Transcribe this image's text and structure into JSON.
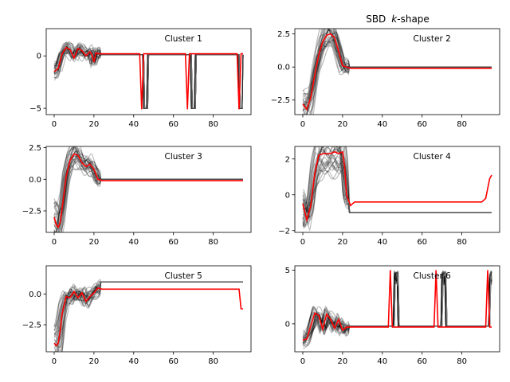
{
  "figure": {
    "title_prefix": "SBD",
    "title_italic": "k",
    "title_suffix": "-shape"
  },
  "chart_data": [
    {
      "type": "line",
      "label": "Cluster 1",
      "xlim": [
        -4,
        99
      ],
      "ylim": [
        -5.6,
        2.6
      ],
      "xticks": [
        0,
        20,
        40,
        60,
        80
      ],
      "yticks": [
        0,
        -5
      ],
      "series_colors": {
        "members": "#000000",
        "centroid": "#ff0000"
      },
      "centroid": {
        "x": [
          0,
          2,
          4,
          6,
          8,
          10,
          12,
          14,
          16,
          18,
          19,
          20,
          21,
          22,
          24,
          30,
          40,
          43,
          44,
          45,
          46,
          50,
          60,
          66,
          67,
          68,
          69,
          70,
          80,
          90,
          92,
          93,
          94,
          95
        ],
        "y": [
          -1.5,
          -1.2,
          0.2,
          0.8,
          0.6,
          -0.2,
          0.7,
          0.5,
          0.0,
          0.4,
          0.1,
          -0.6,
          0.3,
          0.2,
          0.2,
          0.2,
          0.2,
          0.2,
          -5.1,
          0.2,
          0.2,
          0.2,
          0.2,
          0.2,
          -5.1,
          0.2,
          0.2,
          0.2,
          0.2,
          0.2,
          0.2,
          -5.1,
          0.2,
          0.2
        ]
      },
      "members": {
        "count": 30,
        "pattern": "wave_then_flat",
        "flat_level": 0.1,
        "drops": [
          [
            45,
            47,
            -5.0
          ],
          [
            69,
            71,
            -5.0
          ],
          [
            93,
            95,
            -5.0
          ]
        ]
      }
    },
    {
      "type": "line",
      "label": "Cluster 2",
      "xlim": [
        -4,
        99
      ],
      "ylim": [
        -3.6,
        2.9
      ],
      "xticks": [
        0,
        20,
        40,
        60,
        80
      ],
      "yticks": [
        2.5,
        0.0,
        -2.5
      ],
      "series_colors": {
        "members": "#000000",
        "centroid": "#ff0000"
      },
      "centroid": {
        "x": [
          0,
          2,
          4,
          6,
          8,
          10,
          12,
          14,
          16,
          18,
          20,
          22,
          24,
          26,
          30,
          40,
          50,
          60,
          70,
          80,
          90,
          95
        ],
        "y": [
          -2.8,
          -3.2,
          -2.3,
          -0.6,
          0.9,
          1.9,
          2.4,
          2.5,
          2.2,
          1.2,
          0.1,
          0.0,
          -0.1,
          -0.1,
          -0.1,
          -0.1,
          -0.1,
          -0.1,
          -0.1,
          -0.1,
          -0.1,
          -0.1
        ]
      },
      "members": {
        "count": 30,
        "pattern": "wave_then_flat",
        "flat_level": 0.0
      }
    },
    {
      "type": "line",
      "label": "Cluster 3",
      "xlim": [
        -4,
        99
      ],
      "ylim": [
        -4.2,
        2.6
      ],
      "xticks": [
        0,
        20,
        40,
        60,
        80
      ],
      "yticks": [
        2.5,
        0.0,
        -2.5
      ],
      "series_colors": {
        "members": "#000000",
        "centroid": "#ff0000"
      },
      "centroid": {
        "x": [
          0,
          1,
          2,
          3,
          4,
          6,
          8,
          10,
          12,
          14,
          16,
          18,
          20,
          22,
          24,
          30,
          40,
          50,
          60,
          70,
          80,
          90,
          95
        ],
        "y": [
          -3.0,
          -3.6,
          -3.8,
          -3.4,
          -2.3,
          0.2,
          1.5,
          2.0,
          1.9,
          1.3,
          1.0,
          1.2,
          0.8,
          0.0,
          -0.1,
          -0.1,
          -0.1,
          -0.1,
          -0.1,
          -0.1,
          -0.1,
          -0.1,
          -0.1
        ]
      },
      "members": {
        "count": 30,
        "pattern": "wave_then_flat",
        "flat_level": 0.0
      }
    },
    {
      "type": "line",
      "label": "Cluster 4",
      "xlim": [
        -4,
        99
      ],
      "ylim": [
        -2.1,
        2.7
      ],
      "xticks": [
        0,
        20,
        40,
        60,
        80
      ],
      "yticks": [
        2,
        0,
        -2
      ],
      "series_colors": {
        "members": "#000000",
        "centroid": "#ff0000"
      },
      "centroid": {
        "x": [
          0,
          2,
          4,
          6,
          8,
          10,
          12,
          14,
          16,
          18,
          20,
          21,
          22,
          24,
          26,
          30,
          40,
          50,
          60,
          70,
          80,
          90,
          92,
          94,
          95
        ],
        "y": [
          -0.5,
          -1.4,
          -0.6,
          1.2,
          2.2,
          2.3,
          2.3,
          2.3,
          2.4,
          2.3,
          2.4,
          1.6,
          0.0,
          -0.6,
          -0.4,
          -0.4,
          -0.4,
          -0.4,
          -0.4,
          -0.4,
          -0.4,
          -0.4,
          -0.2,
          0.9,
          1.1
        ]
      },
      "members": {
        "count": 30,
        "pattern": "wave_then_flat",
        "flat_level": -1.0
      }
    },
    {
      "type": "line",
      "label": "Cluster 5",
      "xlim": [
        -4,
        99
      ],
      "ylim": [
        -4.7,
        2.3
      ],
      "xticks": [
        0,
        20,
        40,
        60,
        80
      ],
      "yticks": [
        0.0,
        -2.5
      ],
      "series_colors": {
        "members": "#000000",
        "centroid": "#ff0000"
      },
      "centroid": {
        "x": [
          0,
          1,
          2,
          3,
          4,
          6,
          8,
          10,
          12,
          14,
          16,
          18,
          20,
          22,
          24,
          30,
          40,
          50,
          60,
          70,
          80,
          90,
          93,
          94,
          95
        ],
        "y": [
          -4.0,
          -4.2,
          -4.0,
          -3.0,
          -1.6,
          -0.2,
          -0.3,
          0.2,
          -0.3,
          0.1,
          -0.6,
          -0.2,
          0.1,
          0.5,
          0.4,
          0.4,
          0.4,
          0.4,
          0.4,
          0.4,
          0.4,
          0.4,
          0.4,
          -1.2,
          -1.2
        ]
      },
      "members": {
        "count": 30,
        "pattern": "wave_then_flat",
        "flat_level": 1.0
      }
    },
    {
      "type": "line",
      "label": "Cluster 6",
      "xlim": [
        -4,
        99
      ],
      "ylim": [
        -2.6,
        5.4
      ],
      "xticks": [
        0,
        20,
        40,
        60,
        80
      ],
      "yticks": [
        5,
        0
      ],
      "series_colors": {
        "members": "#000000",
        "centroid": "#ff0000"
      },
      "centroid": {
        "x": [
          0,
          2,
          4,
          6,
          8,
          10,
          12,
          14,
          16,
          18,
          20,
          22,
          24,
          30,
          40,
          42,
          43,
          44,
          45,
          46,
          50,
          60,
          65,
          66,
          67,
          68,
          69,
          70,
          80,
          90,
          91,
          92,
          93,
          94,
          95
        ],
        "y": [
          -1.5,
          -1.4,
          -0.2,
          1.0,
          0.8,
          -0.5,
          0.9,
          0.4,
          -0.4,
          0.4,
          -0.6,
          -0.3,
          -0.3,
          -0.3,
          -0.3,
          -0.3,
          -0.3,
          5.0,
          -0.3,
          -0.3,
          -0.3,
          -0.3,
          -0.3,
          -0.3,
          5.0,
          -0.3,
          -0.3,
          -0.3,
          -0.3,
          -0.3,
          -0.3,
          -0.3,
          5.0,
          -0.3,
          -0.3
        ]
      },
      "members": {
        "count": 30,
        "pattern": "wave_then_flat",
        "flat_level": -0.2,
        "spikes": [
          [
            46,
            48,
            4.5
          ],
          [
            70,
            72,
            4.5
          ],
          [
            94,
            96,
            4.5
          ]
        ]
      }
    }
  ]
}
